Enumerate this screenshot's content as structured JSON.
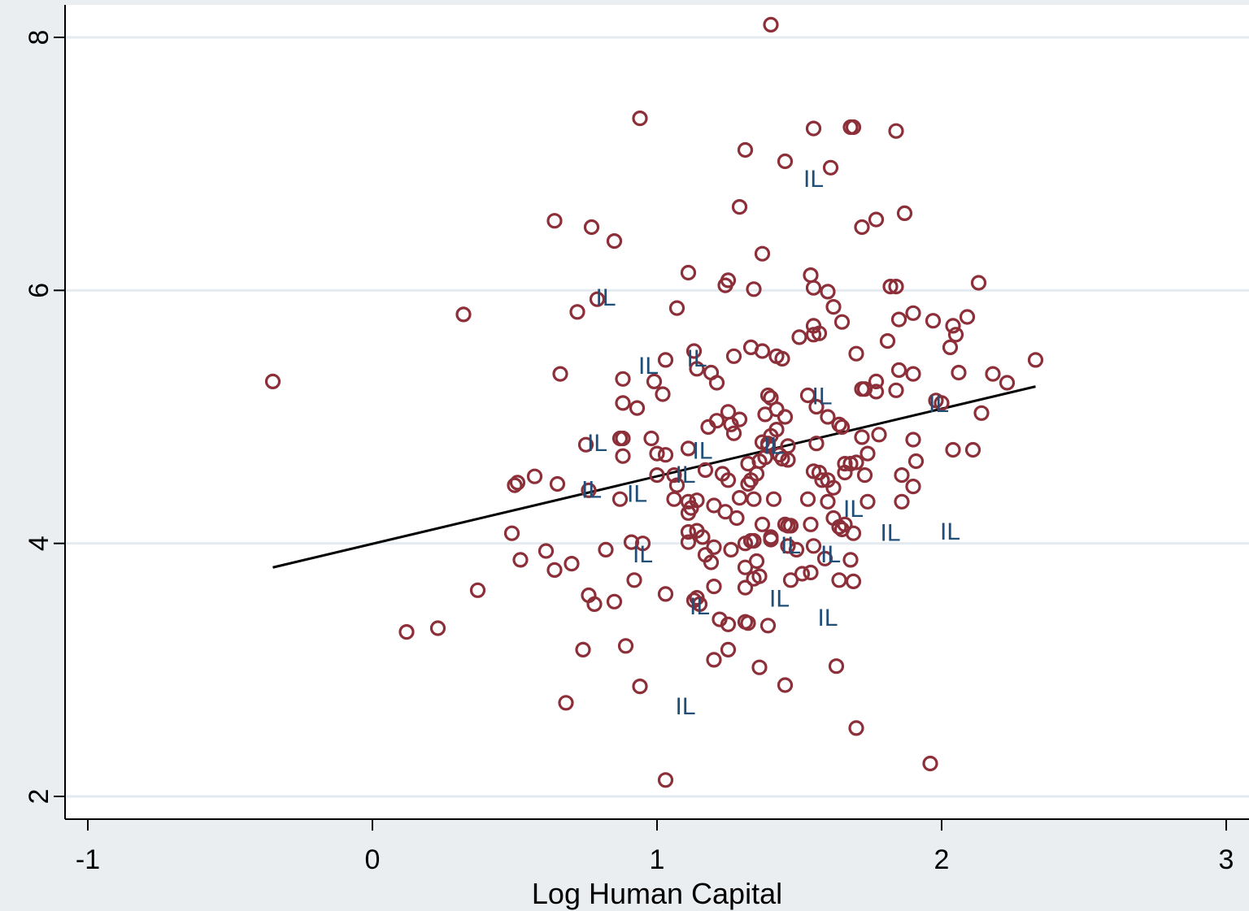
{
  "chart_data": {
    "type": "scatter",
    "title": "",
    "xlabel": "Log Human Capital",
    "ylabel": "",
    "xlim": [
      -1,
      3
    ],
    "ylim": [
      2,
      8
    ],
    "xticks": [
      "-1",
      "0",
      "1",
      "2",
      "3"
    ],
    "yticks": [
      "2",
      "4",
      "6",
      "8"
    ],
    "grid": "horizontal",
    "colors": {
      "background": "#ebeef1",
      "plot": "#ffffff",
      "grid": "#e4ebf0",
      "points": "#8c2f39",
      "labels": "#1f4e79",
      "fit": "#000000"
    },
    "series": [
      {
        "marker": "hollow-circle",
        "points": [
          [
            1.4,
            8.1
          ],
          [
            0.94,
            7.36
          ],
          [
            1.55,
            7.28
          ],
          [
            1.68,
            7.29
          ],
          [
            1.69,
            7.29
          ],
          [
            1.84,
            7.26
          ],
          [
            1.31,
            7.11
          ],
          [
            1.45,
            7.02
          ],
          [
            1.61,
            6.97
          ],
          [
            1.29,
            6.66
          ],
          [
            0.64,
            6.55
          ],
          [
            0.77,
            6.5
          ],
          [
            0.85,
            6.39
          ],
          [
            1.72,
            6.5
          ],
          [
            1.77,
            6.56
          ],
          [
            1.87,
            6.61
          ],
          [
            1.37,
            6.29
          ],
          [
            1.11,
            6.14
          ],
          [
            1.25,
            6.08
          ],
          [
            1.24,
            6.04
          ],
          [
            1.34,
            6.01
          ],
          [
            1.54,
            6.12
          ],
          [
            1.55,
            6.02
          ],
          [
            1.6,
            5.99
          ],
          [
            1.82,
            6.03
          ],
          [
            1.84,
            6.03
          ],
          [
            2.13,
            6.06
          ],
          [
            0.32,
            5.81
          ],
          [
            0.72,
            5.83
          ],
          [
            0.79,
            5.93
          ],
          [
            1.07,
            5.86
          ],
          [
            1.62,
            5.87
          ],
          [
            1.65,
            5.75
          ],
          [
            1.85,
            5.77
          ],
          [
            1.9,
            5.82
          ],
          [
            1.97,
            5.76
          ],
          [
            2.04,
            5.72
          ],
          [
            2.09,
            5.79
          ],
          [
            1.5,
            5.63
          ],
          [
            1.55,
            5.72
          ],
          [
            1.57,
            5.66
          ],
          [
            1.55,
            5.65
          ],
          [
            1.81,
            5.6
          ],
          [
            2.03,
            5.55
          ],
          [
            2.05,
            5.65
          ],
          [
            1.03,
            5.45
          ],
          [
            1.13,
            5.52
          ],
          [
            1.27,
            5.48
          ],
          [
            1.33,
            5.55
          ],
          [
            1.37,
            5.52
          ],
          [
            1.42,
            5.48
          ],
          [
            1.44,
            5.46
          ],
          [
            1.7,
            5.5
          ],
          [
            1.85,
            5.37
          ],
          [
            1.9,
            5.34
          ],
          [
            2.06,
            5.35
          ],
          [
            2.33,
            5.45
          ],
          [
            -0.35,
            5.28
          ],
          [
            0.66,
            5.34
          ],
          [
            0.88,
            5.3
          ],
          [
            0.99,
            5.28
          ],
          [
            1.14,
            5.38
          ],
          [
            1.19,
            5.35
          ],
          [
            1.21,
            5.27
          ],
          [
            1.77,
            5.28
          ],
          [
            1.72,
            5.22
          ],
          [
            1.73,
            5.22
          ],
          [
            1.77,
            5.2
          ],
          [
            1.84,
            5.21
          ],
          [
            2.18,
            5.34
          ],
          [
            2.23,
            5.27
          ],
          [
            0.88,
            5.11
          ],
          [
            0.93,
            5.07
          ],
          [
            1.02,
            5.18
          ],
          [
            1.39,
            5.17
          ],
          [
            1.4,
            5.15
          ],
          [
            1.38,
            5.02
          ],
          [
            1.42,
            5.06
          ],
          [
            1.45,
            5.0
          ],
          [
            1.53,
            5.17
          ],
          [
            1.56,
            5.08
          ],
          [
            1.6,
            5.0
          ],
          [
            1.98,
            5.13
          ],
          [
            2.0,
            5.11
          ],
          [
            2.14,
            5.03
          ],
          [
            1.18,
            4.92
          ],
          [
            1.21,
            4.97
          ],
          [
            1.25,
            5.04
          ],
          [
            1.26,
            4.94
          ],
          [
            1.27,
            4.87
          ],
          [
            1.29,
            4.98
          ],
          [
            1.4,
            4.85
          ],
          [
            1.42,
            4.9
          ],
          [
            1.64,
            4.94
          ],
          [
            1.65,
            4.92
          ],
          [
            0.75,
            4.78
          ],
          [
            0.87,
            4.83
          ],
          [
            0.88,
            4.83
          ],
          [
            0.98,
            4.83
          ],
          [
            1.0,
            4.71
          ],
          [
            1.03,
            4.7
          ],
          [
            1.11,
            4.75
          ],
          [
            1.37,
            4.8
          ],
          [
            1.39,
            4.79
          ],
          [
            1.39,
            4.77
          ],
          [
            1.46,
            4.77
          ],
          [
            1.56,
            4.79
          ],
          [
            1.72,
            4.84
          ],
          [
            1.78,
            4.86
          ],
          [
            1.9,
            4.82
          ],
          [
            2.04,
            4.74
          ],
          [
            2.11,
            4.74
          ],
          [
            0.88,
            4.69
          ],
          [
            1.32,
            4.63
          ],
          [
            1.36,
            4.65
          ],
          [
            1.38,
            4.68
          ],
          [
            1.43,
            4.7
          ],
          [
            1.44,
            4.67
          ],
          [
            1.46,
            4.66
          ],
          [
            1.66,
            4.63
          ],
          [
            1.68,
            4.63
          ],
          [
            1.7,
            4.64
          ],
          [
            1.74,
            4.71
          ],
          [
            1.91,
            4.65
          ],
          [
            0.5,
            4.46
          ],
          [
            0.51,
            4.48
          ],
          [
            0.57,
            4.53
          ],
          [
            0.65,
            4.47
          ],
          [
            0.76,
            4.42
          ],
          [
            1.0,
            4.54
          ],
          [
            1.06,
            4.54
          ],
          [
            1.07,
            4.46
          ],
          [
            1.17,
            4.58
          ],
          [
            1.23,
            4.55
          ],
          [
            1.25,
            4.5
          ],
          [
            1.32,
            4.47
          ],
          [
            1.33,
            4.5
          ],
          [
            1.35,
            4.55
          ],
          [
            1.55,
            4.57
          ],
          [
            1.57,
            4.56
          ],
          [
            1.58,
            4.5
          ],
          [
            1.6,
            4.5
          ],
          [
            1.62,
            4.44
          ],
          [
            1.66,
            4.56
          ],
          [
            1.73,
            4.54
          ],
          [
            1.86,
            4.54
          ],
          [
            1.9,
            4.45
          ],
          [
            0.87,
            4.35
          ],
          [
            1.06,
            4.35
          ],
          [
            1.11,
            4.33
          ],
          [
            1.12,
            4.28
          ],
          [
            1.14,
            4.34
          ],
          [
            1.2,
            4.3
          ],
          [
            1.24,
            4.25
          ],
          [
            1.28,
            4.2
          ],
          [
            1.29,
            4.36
          ],
          [
            1.34,
            4.35
          ],
          [
            1.41,
            4.35
          ],
          [
            1.53,
            4.35
          ],
          [
            1.6,
            4.33
          ],
          [
            1.74,
            4.33
          ],
          [
            1.86,
            4.33
          ],
          [
            1.11,
            4.24
          ],
          [
            1.37,
            4.15
          ],
          [
            1.45,
            4.15
          ],
          [
            1.46,
            4.14
          ],
          [
            1.47,
            4.14
          ],
          [
            1.54,
            4.15
          ],
          [
            1.62,
            4.2
          ],
          [
            1.64,
            4.13
          ],
          [
            1.65,
            4.11
          ],
          [
            1.66,
            4.15
          ],
          [
            1.69,
            4.08
          ],
          [
            0.49,
            4.08
          ],
          [
            0.91,
            4.01
          ],
          [
            0.95,
            4.0
          ],
          [
            1.11,
            4.09
          ],
          [
            1.11,
            4.01
          ],
          [
            1.14,
            4.1
          ],
          [
            1.16,
            4.05
          ],
          [
            1.2,
            3.97
          ],
          [
            1.26,
            3.95
          ],
          [
            1.31,
            4.0
          ],
          [
            1.33,
            4.02
          ],
          [
            1.34,
            4.02
          ],
          [
            1.4,
            4.05
          ],
          [
            1.4,
            4.03
          ],
          [
            1.55,
            3.98
          ],
          [
            1.46,
            3.98
          ],
          [
            0.52,
            3.87
          ],
          [
            0.61,
            3.94
          ],
          [
            0.64,
            3.79
          ],
          [
            0.7,
            3.84
          ],
          [
            0.82,
            3.95
          ],
          [
            1.17,
            3.91
          ],
          [
            1.19,
            3.85
          ],
          [
            1.31,
            3.81
          ],
          [
            1.35,
            3.86
          ],
          [
            1.49,
            3.95
          ],
          [
            1.59,
            3.88
          ],
          [
            1.68,
            3.87
          ],
          [
            0.37,
            3.63
          ],
          [
            0.76,
            3.59
          ],
          [
            0.78,
            3.52
          ],
          [
            0.85,
            3.54
          ],
          [
            0.92,
            3.71
          ],
          [
            1.03,
            3.6
          ],
          [
            1.13,
            3.55
          ],
          [
            1.15,
            3.52
          ],
          [
            1.14,
            3.57
          ],
          [
            1.2,
            3.66
          ],
          [
            1.31,
            3.65
          ],
          [
            1.34,
            3.72
          ],
          [
            1.36,
            3.74
          ],
          [
            1.47,
            3.71
          ],
          [
            1.51,
            3.76
          ],
          [
            1.54,
            3.77
          ],
          [
            1.64,
            3.71
          ],
          [
            1.69,
            3.7
          ],
          [
            0.12,
            3.3
          ],
          [
            0.23,
            3.33
          ],
          [
            0.74,
            3.16
          ],
          [
            0.89,
            3.19
          ],
          [
            1.22,
            3.4
          ],
          [
            1.25,
            3.36
          ],
          [
            1.31,
            3.38
          ],
          [
            1.32,
            3.37
          ],
          [
            1.39,
            3.35
          ],
          [
            1.2,
            3.08
          ],
          [
            1.25,
            3.16
          ],
          [
            1.36,
            3.02
          ],
          [
            1.63,
            3.03
          ],
          [
            0.68,
            2.74
          ],
          [
            0.94,
            2.87
          ],
          [
            1.45,
            2.88
          ],
          [
            1.7,
            2.54
          ],
          [
            1.96,
            2.26
          ],
          [
            1.03,
            2.13
          ]
        ]
      }
    ],
    "labels": {
      "text": "IL",
      "points": [
        [
          1.55,
          6.87
        ],
        [
          0.82,
          5.93
        ],
        [
          0.97,
          5.39
        ],
        [
          1.14,
          5.45
        ],
        [
          1.58,
          5.15
        ],
        [
          1.99,
          5.09
        ],
        [
          0.79,
          4.78
        ],
        [
          1.41,
          4.76
        ],
        [
          1.16,
          4.72
        ],
        [
          1.1,
          4.53
        ],
        [
          0.77,
          4.41
        ],
        [
          0.93,
          4.38
        ],
        [
          1.69,
          4.26
        ],
        [
          1.82,
          4.07
        ],
        [
          2.03,
          4.08
        ],
        [
          1.47,
          3.97
        ],
        [
          1.61,
          3.9
        ],
        [
          0.95,
          3.9
        ],
        [
          1.43,
          3.55
        ],
        [
          1.15,
          3.49
        ],
        [
          1.6,
          3.4
        ],
        [
          1.1,
          2.7
        ]
      ]
    },
    "fit_line": {
      "x": [
        -0.35,
        2.33
      ],
      "y": [
        3.81,
        5.24
      ]
    }
  }
}
